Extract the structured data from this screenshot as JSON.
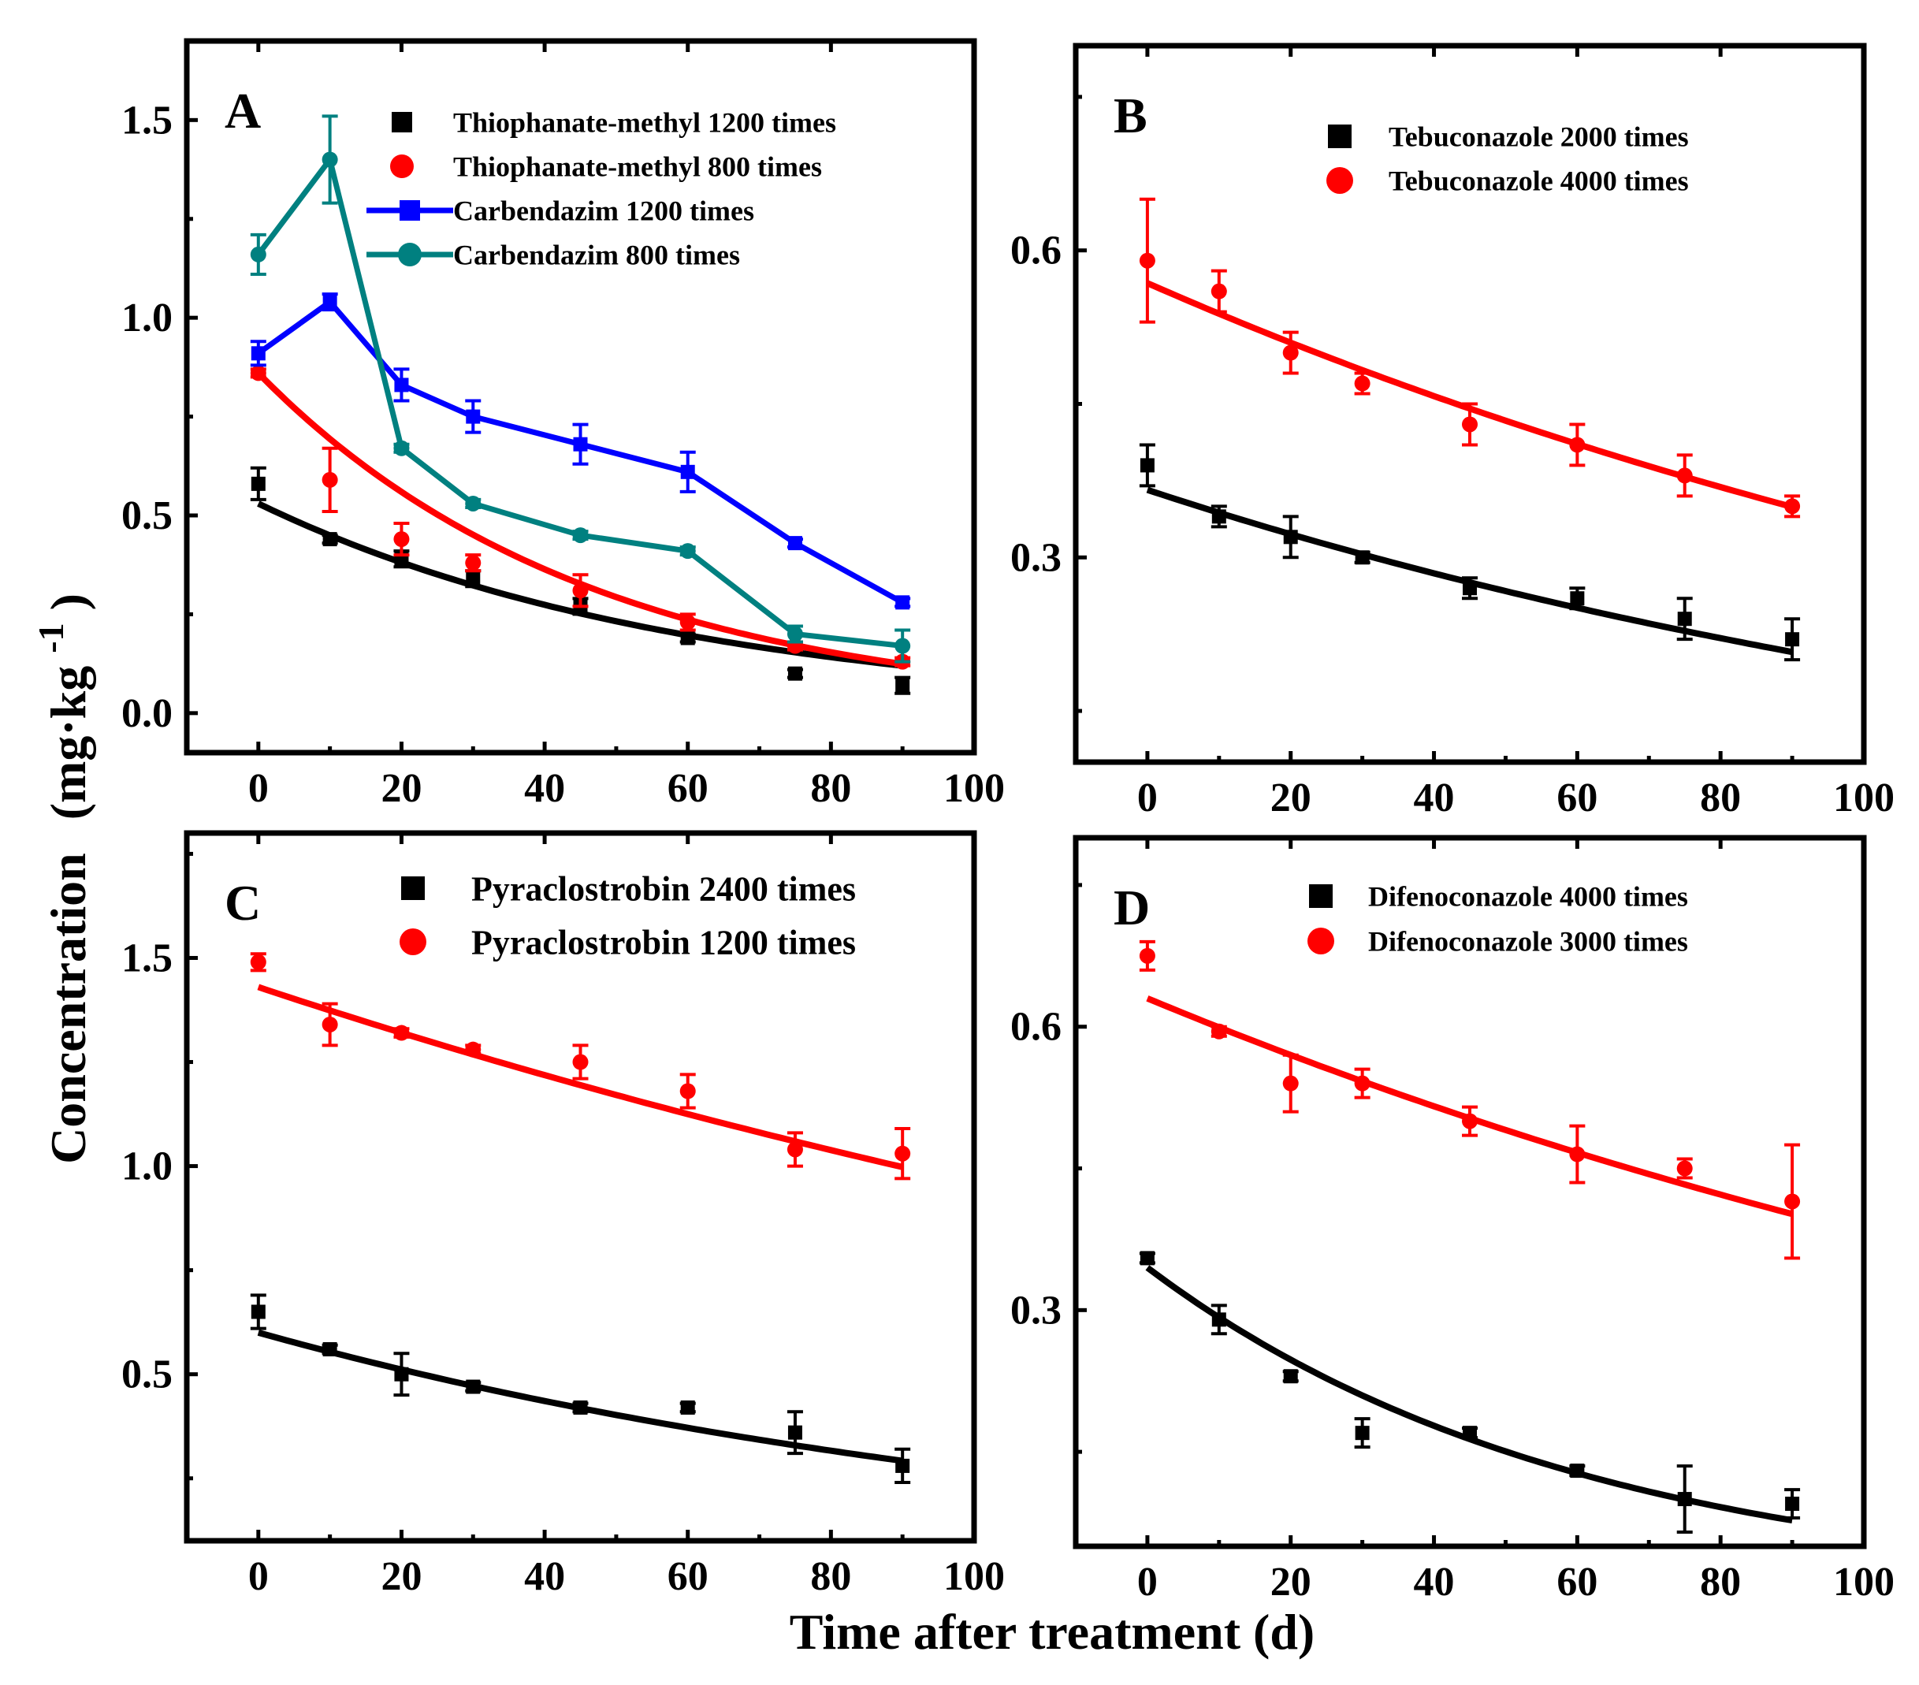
{
  "figure": {
    "ylabel": "Concentration (mg·kg⁻¹)",
    "ylabel_main": "Concentration",
    "ylabel_unit": "(mg·kg",
    "ylabel_exp": "-1",
    "ylabel_close": ")",
    "xlabel": "Time after treatment (d)"
  },
  "colors": {
    "black": "#000000",
    "red": "#ff0000",
    "blue": "#0000ff",
    "teal": "#008080"
  },
  "chart_data": [
    {
      "id": "A",
      "panel_label": "A",
      "type": "scatter",
      "xlim": [
        -10,
        100
      ],
      "ylim": [
        -0.1,
        1.7
      ],
      "xticks": [
        0,
        20,
        40,
        60,
        80,
        100
      ],
      "yticks": [
        0.0,
        0.5,
        1.0,
        1.5
      ],
      "xtick_labels": [
        "0",
        "20",
        "40",
        "60",
        "80",
        "100"
      ],
      "ytick_labels": [
        "0.0",
        "0.5",
        "1.0",
        "1.5"
      ],
      "legend_position": "top-right",
      "series": [
        {
          "name": "Thiophanate-methyl 1200 times",
          "legend_text": "Thiophanate-methyl   1200 times",
          "color": "black",
          "marker": "square",
          "connect": false,
          "x": [
            0,
            10,
            20,
            30,
            45,
            60,
            75,
            90
          ],
          "y": [
            0.58,
            0.44,
            0.39,
            0.34,
            0.27,
            0.19,
            0.1,
            0.07
          ],
          "err": [
            0.04,
            0.01,
            0.02,
            0.02,
            0.02,
            0.01,
            0.01,
            0.02
          ],
          "fit": {
            "c0": 0.53,
            "k": 0.0165
          }
        },
        {
          "name": "Thiophanate-methyl 800 times",
          "legend_text": "Thiophanate-methyl    800 times",
          "color": "red",
          "marker": "circle",
          "connect": false,
          "x": [
            0,
            10,
            20,
            30,
            45,
            60,
            75,
            90
          ],
          "y": [
            0.86,
            0.59,
            0.44,
            0.38,
            0.31,
            0.23,
            0.17,
            0.13
          ],
          "err": [
            0.01,
            0.08,
            0.04,
            0.02,
            0.04,
            0.02,
            0.01,
            0.01
          ],
          "fit": {
            "c0": 0.86,
            "k": 0.0215
          }
        },
        {
          "name": "Carbendazim 1200 times",
          "legend_text": "Carbendazim 1200 times",
          "color": "blue",
          "marker": "square",
          "connect": true,
          "x": [
            0,
            10,
            20,
            30,
            45,
            60,
            75,
            90
          ],
          "y": [
            0.91,
            1.04,
            0.83,
            0.75,
            0.68,
            0.61,
            0.43,
            0.28
          ],
          "err": [
            0.03,
            0.02,
            0.04,
            0.04,
            0.05,
            0.05,
            0.01,
            0.01
          ]
        },
        {
          "name": "Carbendazim 800 times",
          "legend_text": "Carbendazim   800 times",
          "color": "teal",
          "marker": "circle",
          "connect": true,
          "x": [
            0,
            10,
            20,
            30,
            45,
            60,
            75,
            90
          ],
          "y": [
            1.16,
            1.4,
            0.67,
            0.53,
            0.45,
            0.41,
            0.2,
            0.17
          ],
          "err": [
            0.05,
            0.11,
            0.01,
            0.01,
            0.01,
            0.01,
            0.02,
            0.04
          ]
        }
      ]
    },
    {
      "id": "B",
      "panel_label": "B",
      "type": "scatter",
      "xlim": [
        -10,
        100
      ],
      "ylim": [
        0.1,
        0.8
      ],
      "xticks": [
        0,
        20,
        40,
        60,
        80,
        100
      ],
      "yticks": [
        0.3,
        0.6
      ],
      "xtick_labels": [
        "0",
        "20",
        "40",
        "60",
        "80",
        "100"
      ],
      "ytick_labels": [
        "0.3",
        "0.6"
      ],
      "legend_position": "top-right",
      "series": [
        {
          "name": "Tebuconazole 2000 times",
          "legend_text": "Tebuconazole 2000 times",
          "color": "black",
          "marker": "square",
          "connect": false,
          "x": [
            0,
            10,
            20,
            30,
            45,
            60,
            75,
            90
          ],
          "y": [
            0.39,
            0.34,
            0.32,
            0.3,
            0.27,
            0.26,
            0.24,
            0.22
          ],
          "err": [
            0.02,
            0.01,
            0.02,
            0.005,
            0.01,
            0.01,
            0.02,
            0.02
          ],
          "fit": {
            "c0": 0.366,
            "k": 0.0063
          }
        },
        {
          "name": "Tebuconazole 4000 times",
          "legend_text": "Tebuconazole 4000 times",
          "color": "red",
          "marker": "circle",
          "connect": false,
          "x": [
            0,
            10,
            20,
            30,
            45,
            60,
            75,
            90
          ],
          "y": [
            0.59,
            0.56,
            0.5,
            0.47,
            0.43,
            0.41,
            0.38,
            0.35
          ],
          "err": [
            0.06,
            0.02,
            0.02,
            0.01,
            0.02,
            0.02,
            0.02,
            0.01
          ],
          "fit": {
            "c0": 0.568,
            "k": 0.0054
          }
        }
      ]
    },
    {
      "id": "C",
      "panel_label": "C",
      "type": "scatter",
      "xlim": [
        -10,
        100
      ],
      "ylim": [
        0.1,
        1.8
      ],
      "xticks": [
        0,
        20,
        40,
        60,
        80,
        100
      ],
      "yticks": [
        0.5,
        1.0,
        1.5
      ],
      "xtick_labels": [
        "0",
        "20",
        "40",
        "60",
        "80",
        "100"
      ],
      "ytick_labels": [
        "0.5",
        "1.0",
        "1.5"
      ],
      "legend_position": "top-right",
      "series": [
        {
          "name": "Pyraclostrobin 2400 times",
          "legend_text": "Pyraclostrobin 2400 times",
          "color": "black",
          "marker": "square",
          "connect": false,
          "x": [
            0,
            10,
            20,
            30,
            45,
            60,
            75,
            90
          ],
          "y": [
            0.65,
            0.56,
            0.5,
            0.47,
            0.42,
            0.42,
            0.36,
            0.28
          ],
          "err": [
            0.04,
            0.01,
            0.05,
            0.01,
            0.01,
            0.01,
            0.05,
            0.04
          ],
          "fit": {
            "c0": 0.6,
            "k": 0.008
          }
        },
        {
          "name": "Pyraclostrobin 1200 times",
          "legend_text": "Pyraclostrobin 1200 times",
          "color": "red",
          "marker": "circle",
          "connect": false,
          "x": [
            0,
            10,
            20,
            30,
            45,
            60,
            75,
            90
          ],
          "y": [
            1.49,
            1.34,
            1.32,
            1.28,
            1.25,
            1.18,
            1.04,
            1.03
          ],
          "err": [
            0.02,
            0.05,
            0.01,
            0.01,
            0.04,
            0.04,
            0.04,
            0.06
          ],
          "fit": {
            "c0": 1.43,
            "k": 0.004
          }
        }
      ]
    },
    {
      "id": "D",
      "panel_label": "D",
      "type": "scatter",
      "xlim": [
        -10,
        100
      ],
      "ylim": [
        0.05,
        0.8
      ],
      "xticks": [
        0,
        20,
        40,
        60,
        80,
        100
      ],
      "yticks": [
        0.3,
        0.6
      ],
      "xtick_labels": [
        "0",
        "20",
        "40",
        "60",
        "80",
        "100"
      ],
      "ytick_labels": [
        "0.3",
        "0.6"
      ],
      "legend_position": "top-right",
      "series": [
        {
          "name": "Difenoconazole 4000 times",
          "legend_text": "Difenoconazole 4000 times",
          "color": "black",
          "marker": "square",
          "connect": false,
          "x": [
            0,
            10,
            20,
            30,
            45,
            60,
            75,
            90
          ],
          "y": [
            0.355,
            0.29,
            0.23,
            0.17,
            0.17,
            0.13,
            0.1,
            0.095
          ],
          "err": [
            0.005,
            0.015,
            0.005,
            0.015,
            0.005,
            0.005,
            0.035,
            0.015
          ],
          "fit": {
            "c0": 0.345,
            "k": 0.0166
          }
        },
        {
          "name": "Difenoconazole 3000 times",
          "legend_text": "Difenoconazole 3000 times",
          "color": "red",
          "marker": "circle",
          "connect": false,
          "x": [
            0,
            10,
            20,
            30,
            45,
            60,
            75,
            90
          ],
          "y": [
            0.675,
            0.595,
            0.54,
            0.54,
            0.5,
            0.465,
            0.45,
            0.415
          ],
          "err": [
            0.015,
            0.005,
            0.03,
            0.015,
            0.015,
            0.03,
            0.01,
            0.06
          ],
          "fit": {
            "c0": 0.63,
            "k": 0.005
          }
        }
      ]
    }
  ]
}
